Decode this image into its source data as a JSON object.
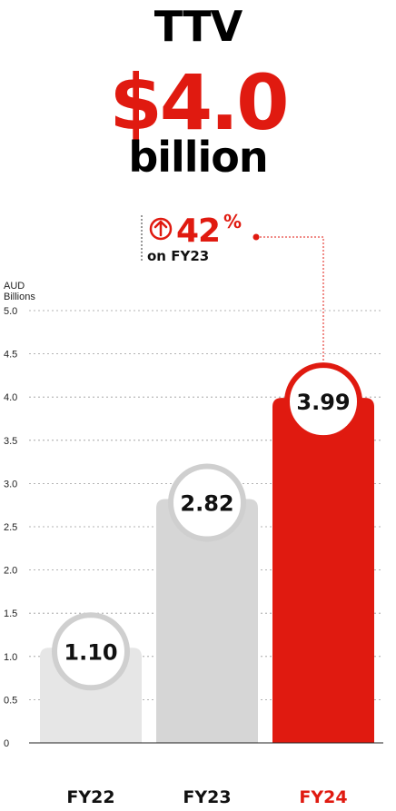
{
  "header": {
    "metric": "TTV",
    "value": "$4.0",
    "unit": "billion"
  },
  "callout": {
    "percent": "42",
    "percent_sign": "%",
    "text": "on FY23",
    "icon": "arrow-up-circle-icon"
  },
  "colors": {
    "accent": "#e01a10",
    "bar_fy22": "#e6e6e6",
    "bar_fy23": "#d6d6d6",
    "bar_fy24": "#e01a10",
    "bubble_ring": "#cfcfcf",
    "bubble_ring_accent": "#e01a10"
  },
  "chart_data": {
    "type": "bar",
    "ylabel": "AUD\nBillions",
    "ylim": [
      0,
      5
    ],
    "yticks": [
      "0",
      "0.5",
      "1.0",
      "1.5",
      "2.0",
      "2.5",
      "3.0",
      "3.5",
      "4.0",
      "4.5",
      "5.0"
    ],
    "grid": true,
    "categories": [
      "FY22",
      "FY23",
      "FY24"
    ],
    "values": [
      1.1,
      2.82,
      3.99
    ],
    "labels": [
      "1.10",
      "2.82",
      "3.99"
    ],
    "highlight_index": 2
  }
}
